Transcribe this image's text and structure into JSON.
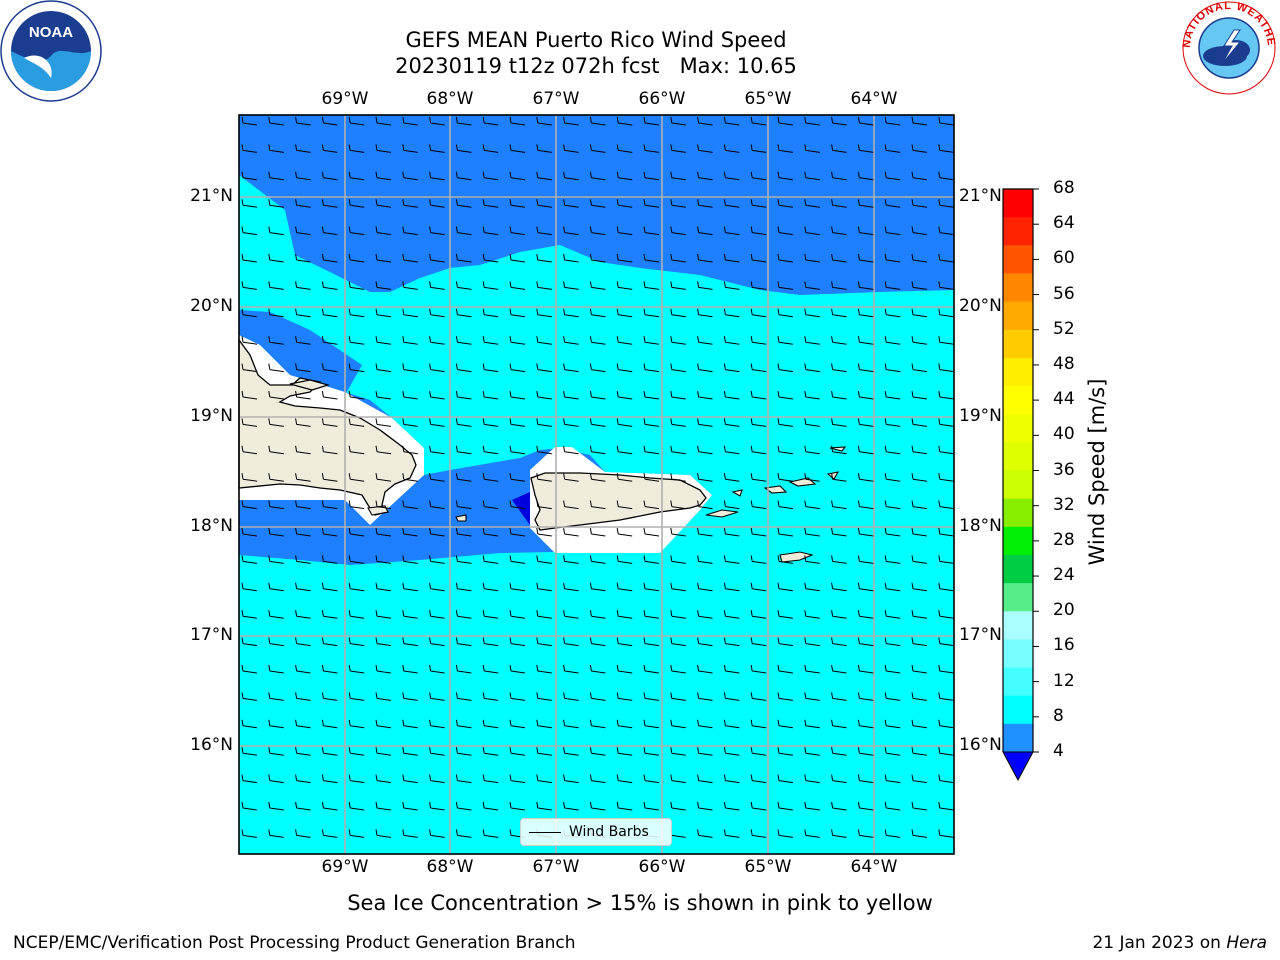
{
  "header": {
    "title_line1": "GEFS MEAN Puerto Rico Wind Speed",
    "title_line2": "20230119 t12z 072h fcst   Max: 10.65"
  },
  "map": {
    "lon_labels": [
      "69°W",
      "68°W",
      "67°W",
      "66°W",
      "65°W",
      "64°W"
    ],
    "lat_labels": [
      "21°N",
      "20°N",
      "19°N",
      "18°N",
      "17°N",
      "16°N"
    ],
    "land_color": "#efecdc",
    "legend_label": "Wind Barbs"
  },
  "colorbar": {
    "title": "Wind Speed [m/s]",
    "ticks": [
      "68",
      "64",
      "60",
      "56",
      "52",
      "48",
      "44",
      "40",
      "36",
      "32",
      "28",
      "24",
      "20",
      "16",
      "12",
      "8",
      "4"
    ],
    "colors_top_to_bottom": [
      "#ff0000",
      "#ff2200",
      "#ff5500",
      "#ff8800",
      "#ffaa00",
      "#ffcc00",
      "#ffee00",
      "#ffff00",
      "#eeff00",
      "#ddff00",
      "#ccff00",
      "#88ee00",
      "#00ee00",
      "#00cc44",
      "#55ee88",
      "#aaffff",
      "#77ffff",
      "#44ffff",
      "#00ffff",
      "#1e90ff",
      "#0000ff"
    ],
    "under_color": "#0000ff"
  },
  "subtitle": "Sea Ice Concentration > 15% is shown in pink to yellow",
  "footer": {
    "left": "NCEP/EMC/Verification Post Processing Product Generation Branch",
    "right_prefix": "21 Jan 2023 on ",
    "right_host": "Hera"
  },
  "logos": {
    "noaa_text": "NOAA",
    "nws_text": "NATIONAL WEATHER SERVICE"
  }
}
